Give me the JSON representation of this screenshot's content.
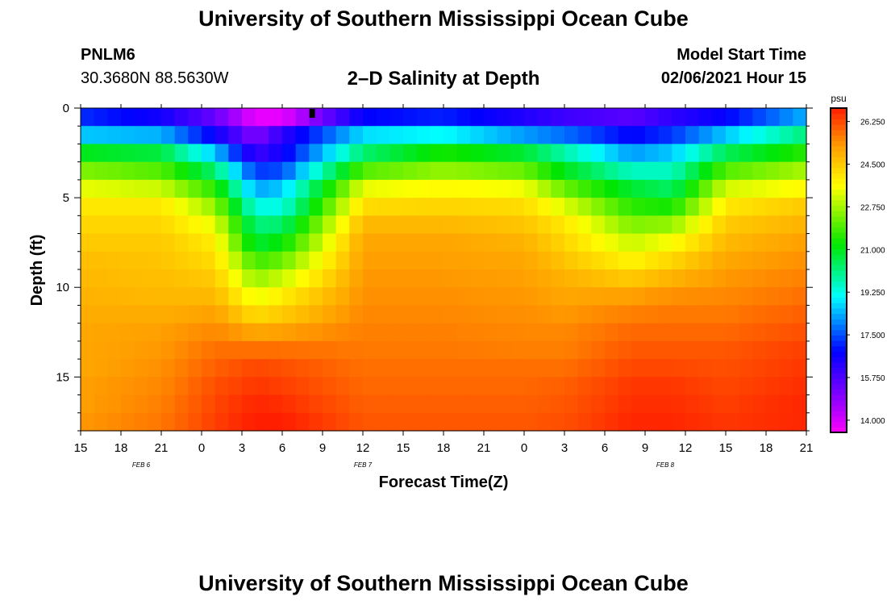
{
  "header": {
    "title": "University of Southern Mississippi Ocean Cube",
    "station_id": "PNLM6",
    "coordinates": "30.3680N 88.5630W",
    "plot_title": "2–D Salinity at Depth",
    "model_start_label": "Model Start Time",
    "model_start_value": "02/06/2021 Hour 15"
  },
  "footer": {
    "title": "University of Southern Mississippi Ocean Cube"
  },
  "chart_data": {
    "type": "heatmap",
    "title": "2–D Salinity at Depth",
    "xlabel": "Forecast Time(Z)",
    "ylabel": "Depth (ft)",
    "x_hours": [
      0,
      3,
      6,
      9,
      12,
      15,
      18,
      21,
      24,
      27,
      30,
      33,
      36,
      39,
      42,
      45,
      48,
      51,
      54
    ],
    "x_tick_labels": [
      "15",
      "18",
      "21",
      "0",
      "3",
      "6",
      "9",
      "12",
      "15",
      "18",
      "21",
      "0",
      "3",
      "6",
      "9",
      "12",
      "15",
      "18",
      "21"
    ],
    "date_labels": [
      {
        "label": "FEB 6",
        "hour": 4.5
      },
      {
        "label": "FEB 7",
        "hour": 21
      },
      {
        "label": "FEB 8",
        "hour": 43.5
      }
    ],
    "y_range": [
      0,
      18
    ],
    "y_ticks": [
      0,
      5,
      10,
      15
    ],
    "color_scale": {
      "unit": "psu",
      "min": 13.5,
      "max": 26.8,
      "tick_values": [
        14.0,
        15.75,
        17.5,
        19.25,
        21.0,
        22.75,
        24.5,
        26.25
      ],
      "tick_labels": [
        "14.000",
        "15.750",
        "17.500",
        "19.250",
        "21.000",
        "22.750",
        "24.500",
        "26.250"
      ]
    },
    "depth_levels": [
      0.5,
      1.5,
      2.5,
      3.5,
      4.5,
      5.5,
      6.5,
      7.5,
      8.5,
      9.5,
      10.5,
      11.5,
      12.5,
      13.5,
      14.5,
      15.5,
      16.5,
      17.5
    ],
    "profile_times": [
      0,
      6,
      10,
      13,
      15,
      21,
      27,
      33,
      36,
      41,
      44,
      48,
      54
    ],
    "salinity_profiles": [
      [
        17.2,
        18.6,
        21.0,
        22.4,
        23.4,
        24.0,
        24.3,
        24.5,
        24.7,
        24.8,
        24.9,
        25.0,
        25.1,
        25.1,
        25.1,
        25.2,
        25.2,
        25.3
      ],
      [
        16.6,
        18.4,
        20.7,
        22.0,
        23.1,
        24.0,
        24.3,
        24.5,
        24.6,
        24.7,
        24.8,
        25.0,
        25.2,
        25.3,
        25.4,
        25.5,
        25.6,
        25.7
      ],
      [
        15.4,
        16.7,
        18.6,
        20.3,
        21.6,
        22.6,
        23.4,
        23.9,
        24.2,
        24.5,
        24.8,
        25.2,
        25.5,
        25.8,
        26.0,
        26.2,
        26.3,
        26.4
      ],
      [
        13.8,
        15.0,
        16.0,
        17.3,
        18.3,
        19.3,
        20.2,
        20.8,
        21.8,
        22.6,
        23.4,
        24.2,
        25.1,
        25.8,
        26.3,
        26.5,
        26.7,
        26.8
      ],
      [
        13.8,
        16.2,
        16.6,
        17.5,
        18.6,
        19.3,
        20.3,
        21.2,
        22.2,
        23.1,
        23.9,
        24.5,
        25.2,
        25.8,
        26.2,
        26.4,
        26.6,
        26.8
      ],
      [
        16.8,
        18.8,
        20.3,
        22.0,
        23.4,
        24.2,
        24.8,
        25.1,
        25.2,
        25.3,
        25.4,
        25.5,
        25.6,
        25.7,
        25.8,
        25.9,
        26.0,
        26.1
      ],
      [
        17.1,
        19.1,
        21.4,
        22.6,
        23.7,
        24.3,
        24.8,
        25.1,
        25.2,
        25.3,
        25.4,
        25.5,
        25.6,
        25.7,
        25.8,
        25.9,
        26.0,
        26.1
      ],
      [
        16.4,
        18.2,
        20.8,
        22.2,
        23.5,
        24.2,
        24.6,
        24.9,
        25.1,
        25.2,
        25.3,
        25.4,
        25.5,
        25.6,
        25.8,
        25.9,
        26.0,
        26.1
      ],
      [
        16.0,
        17.8,
        19.8,
        21.0,
        22.2,
        23.3,
        24.0,
        24.3,
        24.6,
        24.9,
        25.1,
        25.3,
        25.5,
        25.6,
        25.8,
        26.0,
        26.1,
        26.2
      ],
      [
        15.6,
        16.8,
        18.2,
        19.6,
        20.8,
        21.6,
        22.4,
        23.1,
        23.8,
        24.5,
        25.2,
        25.6,
        25.9,
        26.1,
        26.3,
        26.5,
        26.6,
        26.7
      ],
      [
        16.2,
        17.3,
        18.6,
        19.6,
        20.4,
        21.4,
        22.6,
        23.6,
        24.3,
        24.9,
        25.4,
        25.7,
        25.9,
        26.1,
        26.3,
        26.5,
        26.6,
        26.7
      ],
      [
        16.8,
        18.6,
        20.5,
        22.0,
        23.2,
        24.0,
        24.5,
        24.8,
        25.1,
        25.3,
        25.5,
        25.7,
        25.9,
        26.1,
        26.2,
        26.3,
        26.4,
        26.5
      ],
      [
        18.4,
        20.2,
        21.6,
        22.8,
        23.7,
        24.5,
        24.9,
        25.2,
        25.4,
        25.6,
        25.8,
        26.0,
        26.2,
        26.4,
        26.5,
        26.6,
        26.7,
        26.7
      ]
    ]
  }
}
